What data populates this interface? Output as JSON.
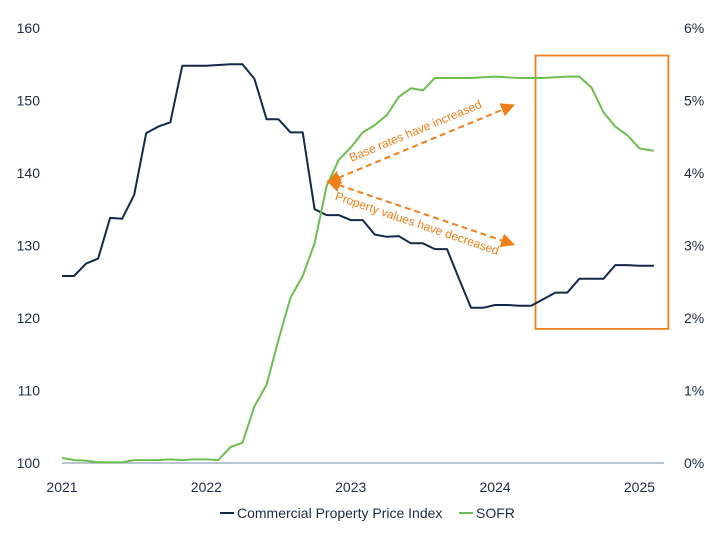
{
  "chart_data": {
    "type": "line",
    "title": "",
    "xlabel": "",
    "ylabel": "",
    "x_ticks": [
      "2021",
      "2022",
      "2023",
      "2024",
      "2025"
    ],
    "x_range": [
      2021.0,
      2025.17
    ],
    "y_left": {
      "ticks": [
        "100",
        "110",
        "120",
        "130",
        "140",
        "150",
        "160"
      ],
      "lim": [
        100,
        160
      ]
    },
    "y_right": {
      "ticks": [
        "0%",
        "1%",
        "2%",
        "3%",
        "4%",
        "5%",
        "6%"
      ],
      "lim": [
        0,
        6
      ],
      "unit": "%"
    },
    "grid": false,
    "legend_position": "bottom",
    "series": [
      {
        "name": "Commercial Property Price Index",
        "axis": "left",
        "color": "#13294b",
        "points": [
          [
            2021.0,
            125.8
          ],
          [
            2021.083,
            125.8
          ],
          [
            2021.167,
            127.5
          ],
          [
            2021.25,
            128.2
          ],
          [
            2021.333,
            133.8
          ],
          [
            2021.417,
            133.7
          ],
          [
            2021.5,
            137.0
          ],
          [
            2021.583,
            145.5
          ],
          [
            2021.667,
            146.4
          ],
          [
            2021.75,
            147.0
          ],
          [
            2021.833,
            154.8
          ],
          [
            2021.917,
            154.8
          ],
          [
            2022.0,
            154.8
          ],
          [
            2022.083,
            154.9
          ],
          [
            2022.167,
            155.0
          ],
          [
            2022.25,
            155.0
          ],
          [
            2022.333,
            153.0
          ],
          [
            2022.417,
            147.4
          ],
          [
            2022.5,
            147.4
          ],
          [
            2022.583,
            145.6
          ],
          [
            2022.667,
            145.6
          ],
          [
            2022.75,
            135.0
          ],
          [
            2022.833,
            134.2
          ],
          [
            2022.917,
            134.2
          ],
          [
            2023.0,
            133.5
          ],
          [
            2023.083,
            133.5
          ],
          [
            2023.167,
            131.5
          ],
          [
            2023.25,
            131.2
          ],
          [
            2023.333,
            131.3
          ],
          [
            2023.417,
            130.3
          ],
          [
            2023.5,
            130.3
          ],
          [
            2023.583,
            129.5
          ],
          [
            2023.667,
            129.5
          ],
          [
            2023.75,
            125.4
          ],
          [
            2023.833,
            121.4
          ],
          [
            2023.917,
            121.4
          ],
          [
            2024.0,
            121.8
          ],
          [
            2024.083,
            121.8
          ],
          [
            2024.167,
            121.7
          ],
          [
            2024.25,
            121.7
          ],
          [
            2024.333,
            122.6
          ],
          [
            2024.417,
            123.5
          ],
          [
            2024.5,
            123.5
          ],
          [
            2024.583,
            125.4
          ],
          [
            2024.667,
            125.4
          ],
          [
            2024.75,
            125.4
          ],
          [
            2024.833,
            127.3
          ],
          [
            2024.917,
            127.3
          ],
          [
            2025.0,
            127.2
          ],
          [
            2025.083,
            127.2
          ],
          [
            2025.1,
            127.2
          ]
        ]
      },
      {
        "name": "SOFR",
        "axis": "right",
        "color": "#6cbf4c",
        "points": [
          [
            2021.0,
            0.07
          ],
          [
            2021.083,
            0.04
          ],
          [
            2021.167,
            0.03
          ],
          [
            2021.25,
            0.01
          ],
          [
            2021.333,
            0.01
          ],
          [
            2021.417,
            0.01
          ],
          [
            2021.5,
            0.04
          ],
          [
            2021.583,
            0.04
          ],
          [
            2021.667,
            0.04
          ],
          [
            2021.75,
            0.05
          ],
          [
            2021.833,
            0.04
          ],
          [
            2021.917,
            0.05
          ],
          [
            2022.0,
            0.05
          ],
          [
            2022.083,
            0.04
          ],
          [
            2022.167,
            0.22
          ],
          [
            2022.25,
            0.28
          ],
          [
            2022.333,
            0.78
          ],
          [
            2022.417,
            1.08
          ],
          [
            2022.5,
            1.7
          ],
          [
            2022.583,
            2.28
          ],
          [
            2022.667,
            2.58
          ],
          [
            2022.75,
            3.03
          ],
          [
            2022.833,
            3.82
          ],
          [
            2022.917,
            4.18
          ],
          [
            2023.0,
            4.35
          ],
          [
            2023.083,
            4.56
          ],
          [
            2023.167,
            4.66
          ],
          [
            2023.25,
            4.8
          ],
          [
            2023.333,
            5.05
          ],
          [
            2023.417,
            5.17
          ],
          [
            2023.5,
            5.14
          ],
          [
            2023.583,
            5.31
          ],
          [
            2023.667,
            5.31
          ],
          [
            2023.75,
            5.31
          ],
          [
            2023.833,
            5.31
          ],
          [
            2023.917,
            5.32
          ],
          [
            2024.0,
            5.33
          ],
          [
            2024.083,
            5.32
          ],
          [
            2024.167,
            5.31
          ],
          [
            2024.25,
            5.31
          ],
          [
            2024.333,
            5.31
          ],
          [
            2024.417,
            5.32
          ],
          [
            2024.5,
            5.33
          ],
          [
            2024.583,
            5.33
          ],
          [
            2024.667,
            5.18
          ],
          [
            2024.75,
            4.84
          ],
          [
            2024.833,
            4.64
          ],
          [
            2024.917,
            4.52
          ],
          [
            2025.0,
            4.34
          ],
          [
            2025.083,
            4.31
          ],
          [
            2025.1,
            4.31
          ]
        ]
      }
    ],
    "annotations": [
      {
        "text": "Base rates have increased",
        "color": "#ef7f1a",
        "style": "dashed-arrow",
        "from": [
          2022.85,
          138.8
        ],
        "to": [
          2024.12,
          149.3
        ],
        "label_offset": -13
      },
      {
        "text": "Property values have decreased",
        "color": "#ef7f1a",
        "style": "dashed-arrow",
        "from": [
          2022.85,
          138.8
        ],
        "to": [
          2024.12,
          130.2
        ],
        "label_offset": 12
      }
    ],
    "highlight_box": {
      "color": "#ef7f1a",
      "x_range": [
        2024.28,
        2025.2
      ],
      "y_range": [
        118.5,
        156.2
      ]
    }
  }
}
